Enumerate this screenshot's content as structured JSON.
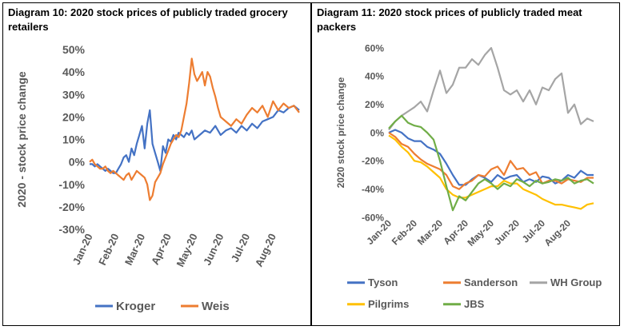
{
  "chart_data": [
    {
      "type": "line",
      "title": "Diagram 10: 2020 stock prices of publicly traded grocery retailers",
      "xlabel": "",
      "ylabel": "2020 - stock price change",
      "ylim": [
        -30,
        50
      ],
      "yticks": [
        "50%",
        "40%",
        "30%",
        "20%",
        "10%",
        "0%",
        "-10%",
        "-20%",
        "-30%"
      ],
      "xticks": [
        "Jan-20",
        "Feb-20",
        "Mar-20",
        "Apr-20",
        "May-20",
        "Jun-20",
        "Jul-20",
        "Aug-20"
      ],
      "legend": "bottom",
      "grid": false,
      "series": [
        {
          "name": "Kroger",
          "color": "#4472C4",
          "x": [
            0,
            0.1,
            0.2,
            0.3,
            0.4,
            0.5,
            0.6,
            0.7,
            0.8,
            0.9,
            1.0,
            1.1,
            1.2,
            1.3,
            1.4,
            1.5,
            1.6,
            1.7,
            1.8,
            1.9,
            2.0,
            2.1,
            2.2,
            2.3,
            2.4,
            2.5,
            2.6,
            2.7,
            2.8,
            2.9,
            3.0,
            3.1,
            3.2,
            3.3,
            3.4,
            3.5,
            3.6,
            3.7,
            3.8,
            3.9,
            4.0,
            4.2,
            4.4,
            4.6,
            4.8,
            5.0,
            5.2,
            5.4,
            5.6,
            5.8,
            6.0,
            6.2,
            6.4,
            6.6,
            6.8,
            7.0,
            7.2,
            7.4,
            7.6,
            7.8,
            8.0
          ],
          "y": [
            -1,
            -1,
            -2,
            -1,
            -2,
            -3,
            -4,
            -3,
            -4,
            -5,
            -5,
            -3,
            -1,
            2,
            3,
            0,
            6,
            3,
            8,
            12,
            16,
            6,
            17,
            23,
            8,
            4,
            0,
            -4,
            7,
            4,
            10,
            9,
            12,
            10,
            13,
            12,
            11,
            13,
            12,
            14,
            10,
            12,
            14,
            13,
            16,
            12,
            14,
            15,
            13,
            16,
            14,
            17,
            15,
            18,
            19,
            20,
            23,
            22,
            24,
            25,
            23
          ]
        },
        {
          "name": "Weis",
          "color": "#ED7D31",
          "x": [
            0,
            0.1,
            0.2,
            0.3,
            0.4,
            0.5,
            0.6,
            0.7,
            0.8,
            0.9,
            1.0,
            1.1,
            1.2,
            1.3,
            1.4,
            1.5,
            1.6,
            1.7,
            1.8,
            1.9,
            2.0,
            2.1,
            2.2,
            2.3,
            2.4,
            2.5,
            2.6,
            2.7,
            2.8,
            2.9,
            3.0,
            3.1,
            3.2,
            3.3,
            3.4,
            3.5,
            3.6,
            3.7,
            3.8,
            3.9,
            4.0,
            4.1,
            4.2,
            4.3,
            4.4,
            4.5,
            4.6,
            4.7,
            4.8,
            4.9,
            5.0,
            5.2,
            5.4,
            5.6,
            5.8,
            6.0,
            6.2,
            6.4,
            6.6,
            6.8,
            7.0,
            7.2,
            7.4,
            7.6,
            7.8,
            8.0
          ],
          "y": [
            0,
            1,
            -1,
            -2,
            -3,
            -3,
            -2,
            -4,
            -5,
            -4,
            -5,
            -6,
            -7,
            -8,
            -6,
            -5,
            -8,
            -6,
            -4,
            -5,
            -6,
            -7,
            -10,
            -17,
            -15,
            -9,
            -7,
            -5,
            -1,
            2,
            5,
            8,
            10,
            12,
            11,
            14,
            20,
            26,
            35,
            46,
            39,
            36,
            38,
            40,
            34,
            40,
            38,
            33,
            29,
            24,
            20,
            18,
            16,
            19,
            17,
            21,
            24,
            22,
            25,
            20,
            27,
            23,
            26,
            24,
            25,
            22
          ]
        }
      ]
    },
    {
      "type": "line",
      "title": "Diagram 11: 2020 stock prices of publicly traded meat packers",
      "xlabel": "",
      "ylabel": "2020 stock price change",
      "ylim": [
        -60,
        60
      ],
      "yticks": [
        "60%",
        "40%",
        "20%",
        "0%",
        "-20%",
        "-40%",
        "-60%"
      ],
      "xticks": [
        "Jan-20",
        "Feb-20",
        "Mar-20",
        "Apr-20",
        "May-20",
        "Jun-20",
        "Jul-20",
        "Aug-20"
      ],
      "legend": "bottom",
      "grid": false,
      "series": [
        {
          "name": "Tyson",
          "color": "#4472C4",
          "x": [
            0,
            0.25,
            0.5,
            0.75,
            1.0,
            1.25,
            1.5,
            1.75,
            2.0,
            2.25,
            2.5,
            2.75,
            3.0,
            3.25,
            3.5,
            3.75,
            4.0,
            4.25,
            4.5,
            4.75,
            5.0,
            5.25,
            5.5,
            5.75,
            6.0,
            6.25,
            6.5,
            6.75,
            7.0,
            7.25,
            7.5,
            7.75,
            8.0
          ],
          "y": [
            0,
            2,
            0,
            -4,
            -6,
            -6,
            -10,
            -12,
            -15,
            -22,
            -30,
            -37,
            -37,
            -33,
            -30,
            -32,
            -35,
            -30,
            -33,
            -31,
            -30,
            -35,
            -33,
            -35,
            -31,
            -32,
            -36,
            -34,
            -30,
            -32,
            -27,
            -30,
            -30
          ]
        },
        {
          "name": "Sanderson",
          "color": "#ED7D31",
          "x": [
            0,
            0.25,
            0.5,
            0.75,
            1.0,
            1.25,
            1.5,
            1.75,
            2.0,
            2.25,
            2.5,
            2.75,
            3.0,
            3.25,
            3.5,
            3.75,
            4.0,
            4.25,
            4.5,
            4.75,
            5.0,
            5.25,
            5.5,
            5.75,
            6.0,
            6.25,
            6.5,
            6.75,
            7.0,
            7.25,
            7.5,
            7.75,
            8.0
          ],
          "y": [
            0,
            -3,
            -8,
            -10,
            -15,
            -19,
            -22,
            -24,
            -26,
            -30,
            -38,
            -40,
            -36,
            -34,
            -30,
            -31,
            -26,
            -24,
            -30,
            -20,
            -26,
            -25,
            -30,
            -28,
            -36,
            -34,
            -34,
            -36,
            -33,
            -34,
            -35,
            -32,
            -32
          ]
        },
        {
          "name": "WH Group",
          "color": "#A5A5A5",
          "x": [
            0,
            0.25,
            0.5,
            0.75,
            1.0,
            1.25,
            1.5,
            1.75,
            2.0,
            2.25,
            2.5,
            2.75,
            3.0,
            3.25,
            3.5,
            3.75,
            4.0,
            4.25,
            4.5,
            4.75,
            5.0,
            5.25,
            5.5,
            5.75,
            6.0,
            6.25,
            6.5,
            6.75,
            7.0,
            7.25,
            7.5,
            7.75,
            8.0
          ],
          "y": [
            2,
            8,
            12,
            15,
            18,
            22,
            15,
            30,
            44,
            28,
            34,
            46,
            46,
            52,
            48,
            55,
            60,
            46,
            30,
            27,
            30,
            22,
            30,
            20,
            32,
            30,
            38,
            42,
            14,
            20,
            6,
            10,
            8
          ]
        },
        {
          "name": "Pilgrims",
          "color": "#FFC000",
          "x": [
            0,
            0.25,
            0.5,
            0.75,
            1.0,
            1.25,
            1.5,
            1.75,
            2.0,
            2.25,
            2.5,
            2.75,
            3.0,
            3.25,
            3.5,
            3.75,
            4.0,
            4.25,
            4.5,
            4.75,
            5.0,
            5.25,
            5.5,
            5.75,
            6.0,
            6.25,
            6.5,
            6.75,
            7.0,
            7.25,
            7.5,
            7.75,
            8.0
          ],
          "y": [
            -2,
            -5,
            -10,
            -14,
            -20,
            -21,
            -24,
            -28,
            -32,
            -40,
            -44,
            -46,
            -46,
            -44,
            -42,
            -40,
            -38,
            -38,
            -34,
            -36,
            -36,
            -40,
            -42,
            -44,
            -47,
            -49,
            -51,
            -51,
            -52,
            -53,
            -54,
            -51,
            -50
          ]
        },
        {
          "name": "JBS",
          "color": "#70AD47",
          "x": [
            0,
            0.25,
            0.5,
            0.75,
            1.0,
            1.25,
            1.5,
            1.75,
            2.0,
            2.25,
            2.5,
            2.75,
            3.0,
            3.25,
            3.5,
            3.75,
            4.0,
            4.25,
            4.5,
            4.75,
            5.0,
            5.25,
            5.5,
            5.75,
            6.0,
            6.25,
            6.5,
            6.75,
            7.0,
            7.25,
            7.5,
            7.75,
            8.0
          ],
          "y": [
            3,
            8,
            12,
            7,
            5,
            4,
            0,
            -5,
            -20,
            -38,
            -55,
            -45,
            -48,
            -42,
            -36,
            -33,
            -36,
            -40,
            -36,
            -38,
            -33,
            -35,
            -38,
            -34,
            -36,
            -35,
            -33,
            -34,
            -32,
            -36,
            -34,
            -33,
            -36
          ]
        }
      ]
    }
  ]
}
